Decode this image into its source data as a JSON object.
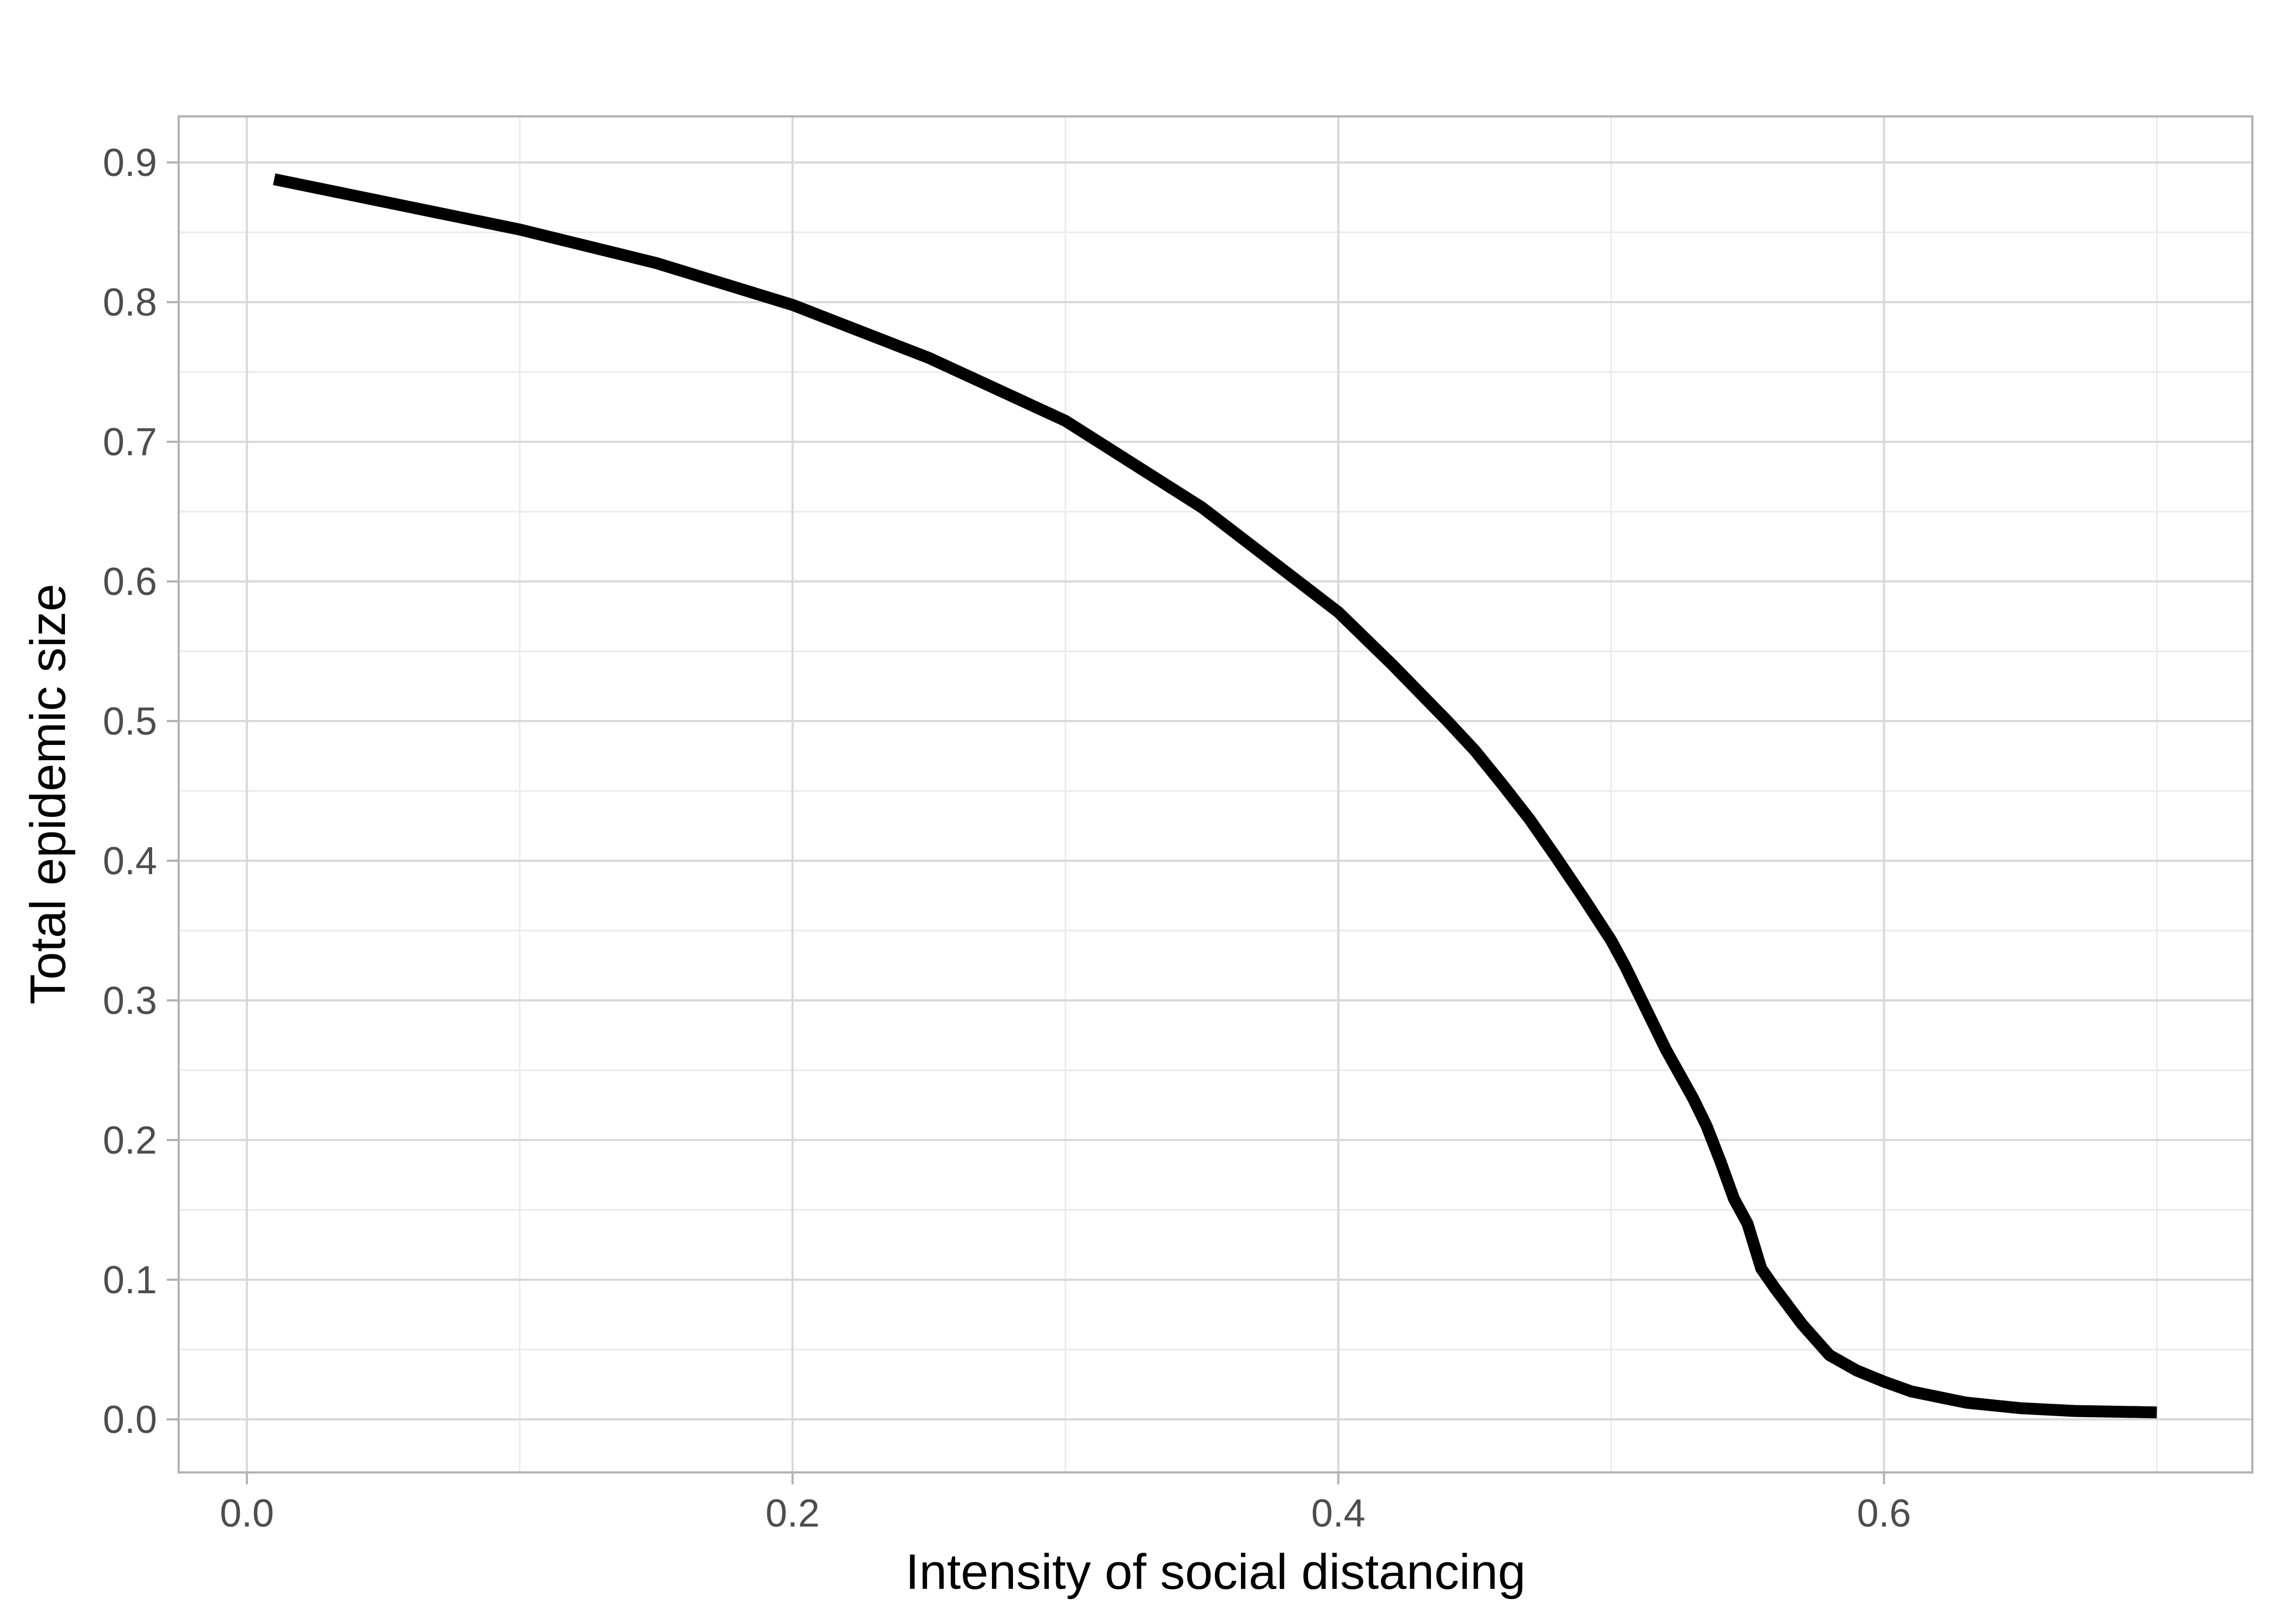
{
  "chart_data": {
    "type": "line",
    "title": "",
    "xlabel": "Intensity of social distancing",
    "ylabel": "Total epidemic size",
    "xlim": [
      -0.025,
      0.735
    ],
    "ylim": [
      -0.038,
      0.933
    ],
    "x_ticks": [
      0.0,
      0.2,
      0.4,
      0.6
    ],
    "x_tick_labels": [
      "0.0",
      "0.2",
      "0.4",
      "0.6"
    ],
    "y_ticks": [
      0.0,
      0.1,
      0.2,
      0.3,
      0.4,
      0.5,
      0.6,
      0.7,
      0.8,
      0.9
    ],
    "y_tick_labels": [
      "0.0",
      "0.1",
      "0.2",
      "0.3",
      "0.4",
      "0.5",
      "0.6",
      "0.7",
      "0.8",
      "0.9"
    ],
    "grid": true,
    "legend": "none",
    "colors": {
      "line": "#000000",
      "panel_border": "#b3b3b3",
      "grid_major": "#d9d9d9",
      "grid_minor": "#ebebeb",
      "tick_text": "#4d4d4d",
      "axis_title": "#000000"
    },
    "series": [
      {
        "x": [
          0.01,
          0.05,
          0.1,
          0.15,
          0.2,
          0.25,
          0.3,
          0.35,
          0.4,
          0.42,
          0.44,
          0.45,
          0.46,
          0.47,
          0.48,
          0.49,
          0.5,
          0.505,
          0.51,
          0.52,
          0.53,
          0.535,
          0.54,
          0.545,
          0.55,
          0.555,
          0.56,
          0.57,
          0.58,
          0.59,
          0.6,
          0.61,
          0.62,
          0.63,
          0.64,
          0.65,
          0.67,
          0.7
        ],
        "y": [
          0.888,
          0.872,
          0.852,
          0.828,
          0.798,
          0.76,
          0.715,
          0.653,
          0.578,
          0.54,
          0.5,
          0.479,
          0.455,
          0.43,
          0.402,
          0.373,
          0.343,
          0.325,
          0.305,
          0.265,
          0.23,
          0.21,
          0.185,
          0.158,
          0.14,
          0.108,
          0.094,
          0.068,
          0.046,
          0.035,
          0.027,
          0.02,
          0.016,
          0.012,
          0.01,
          0.008,
          0.006,
          0.005
        ]
      }
    ]
  }
}
